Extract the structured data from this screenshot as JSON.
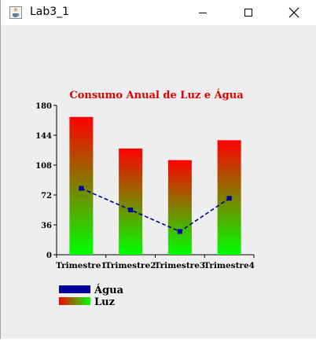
{
  "window": {
    "title": "Lab3_1",
    "icon": "java-cup-icon",
    "controls": [
      "minimize-icon",
      "maximize-icon",
      "close-icon"
    ]
  },
  "chart_data": {
    "type": "bar",
    "title": "Consumo Anual de Luz e Água",
    "categories": [
      "Trimestre1",
      "Trimestre2",
      "Trimestre3",
      "Trimestre4"
    ],
    "ylim": [
      0,
      180
    ],
    "yticks": [
      0,
      36,
      72,
      108,
      144,
      180
    ],
    "legend_position": "bottom-left",
    "grid": false,
    "series": [
      {
        "name": "Luz",
        "type": "bar",
        "values": [
          166,
          128,
          114,
          138
        ],
        "gradient": [
          "#ff0000",
          "#00ff00"
        ]
      },
      {
        "name": "Água",
        "type": "line",
        "style": "dashed",
        "values": [
          80,
          54,
          28,
          68
        ],
        "color": "#0000a0"
      }
    ],
    "colors": {
      "title": "#e00000",
      "axis": "#000000"
    }
  }
}
